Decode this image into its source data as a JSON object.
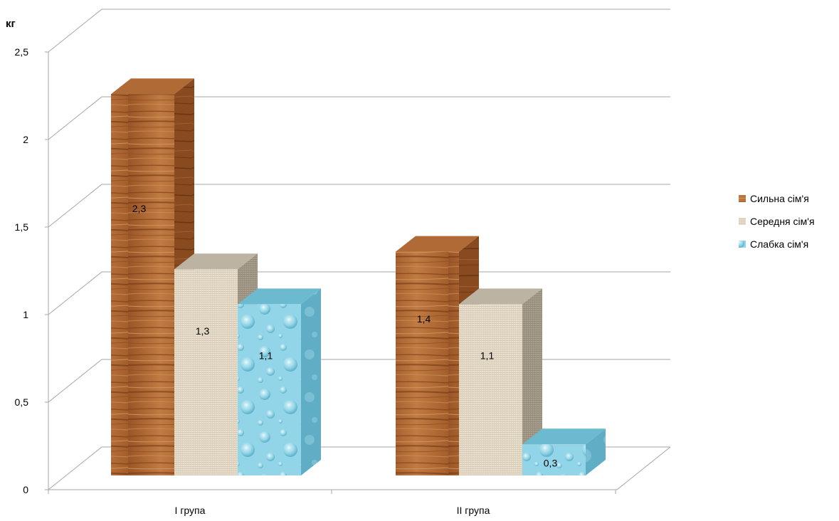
{
  "chart_data": {
    "type": "bar",
    "three_d": true,
    "ylabel": "кг",
    "ylim": [
      0,
      2.5
    ],
    "ytick_step": 0.5,
    "yticks": [
      "0",
      "0,5",
      "1",
      "1,5",
      "2",
      "2,5"
    ],
    "categories": [
      "I група",
      "II група"
    ],
    "series": [
      {
        "name": "Сильна сім'я",
        "values": [
          2.3,
          1.4
        ],
        "labels": [
          "2,3",
          "1,4"
        ],
        "color": "#b86a35",
        "texture": "wood"
      },
      {
        "name": "Середня сім'я",
        "values": [
          1.3,
          1.1
        ],
        "labels": [
          "1,3",
          "1,1"
        ],
        "color": "#e6dccb",
        "texture": "linen"
      },
      {
        "name": "Слабка сім'я",
        "values": [
          1.1,
          0.3
        ],
        "labels": [
          "1,1",
          "0,3"
        ],
        "color": "#8fd3e6",
        "texture": "water-droplets"
      }
    ],
    "grid": true,
    "legend_position": "right"
  }
}
